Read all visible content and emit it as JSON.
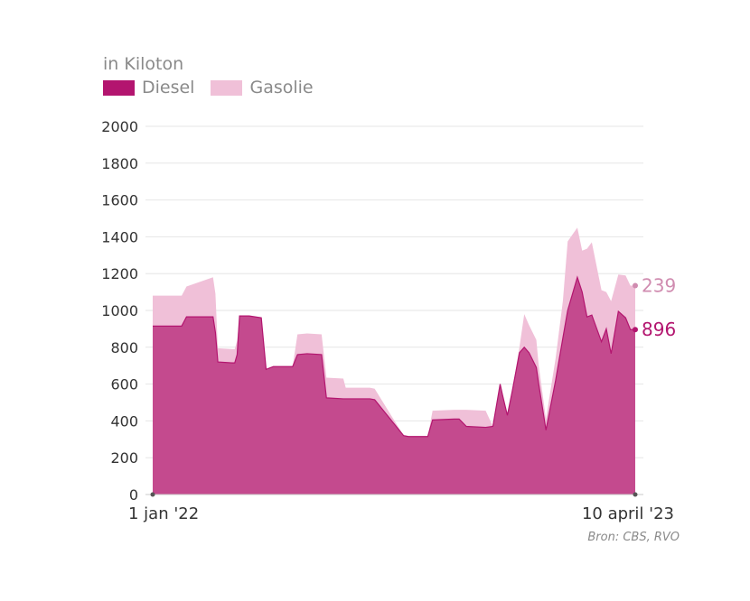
{
  "subtitle": "in Kiloton",
  "source": "Bron: CBS, RVO",
  "colors": {
    "diesel": "#b3156f",
    "diesel_fill": "#c44a8e",
    "gasolie": "#f0c0d8",
    "gasolie_label": "#d08cb0",
    "grid": "#e6e6e6",
    "axis_text": "#333333"
  },
  "legend": [
    {
      "name": "Diesel",
      "color": "#b3156f"
    },
    {
      "name": "Gasolie",
      "color": "#f0c0d8"
    }
  ],
  "chart_data": {
    "type": "area",
    "stacked": true,
    "x_start_label": "1 jan '22",
    "x_end_label": "10 april '23",
    "xlim": [
      0,
      100
    ],
    "ylim": [
      0,
      2000
    ],
    "yticks": [
      0,
      200,
      400,
      600,
      800,
      1000,
      1200,
      1400,
      1600,
      1800,
      2000
    ],
    "grid": true,
    "legend_position": "top-left",
    "x": [
      0,
      6,
      6.5,
      7,
      12.5,
      13,
      13.5,
      16.5,
      17,
      17.5,
      18,
      19,
      19.5,
      20,
      22.5,
      23.5,
      25,
      29,
      30,
      32,
      35,
      36,
      39.5,
      40,
      42,
      45,
      46,
      52,
      53,
      57,
      58,
      62.5,
      63.5,
      65,
      69,
      70.5,
      72,
      72.5,
      73.5,
      74.5,
      76,
      77,
      78,
      79.5,
      80,
      81.5,
      83.5,
      85,
      86,
      88,
      89,
      90,
      91,
      93,
      94,
      95,
      96.5,
      98,
      99,
      100
    ],
    "series": [
      {
        "name": "Diesel",
        "values": [
          915,
          915,
          940,
          965,
          965,
          880,
          720,
          715,
          715,
          760,
          970,
          970,
          970,
          970,
          960,
          680,
          695,
          695,
          760,
          765,
          760,
          525,
          520,
          520,
          520,
          520,
          515,
          320,
          315,
          315,
          405,
          410,
          410,
          370,
          365,
          370,
          600,
          540,
          430,
          560,
          770,
          800,
          770,
          690,
          600,
          350,
          620,
          850,
          1000,
          1180,
          1100,
          965,
          975,
          830,
          900,
          765,
          995,
          960,
          896,
          896
        ]
      },
      {
        "name": "Gasolie",
        "values": [
          165,
          165,
          165,
          165,
          215,
          210,
          75,
          75,
          75,
          75,
          0,
          0,
          0,
          0,
          0,
          0,
          0,
          0,
          110,
          110,
          110,
          110,
          110,
          60,
          60,
          60,
          60,
          0,
          0,
          0,
          50,
          50,
          50,
          90,
          90,
          0,
          0,
          0,
          0,
          0,
          30,
          180,
          150,
          150,
          100,
          60,
          120,
          200,
          375,
          270,
          225,
          370,
          395,
          280,
          200,
          285,
          200,
          230,
          239,
          239
        ]
      }
    ],
    "end_labels": [
      {
        "series": "Gasolie",
        "value": 239
      },
      {
        "series": "Diesel",
        "value": 896
      }
    ]
  }
}
